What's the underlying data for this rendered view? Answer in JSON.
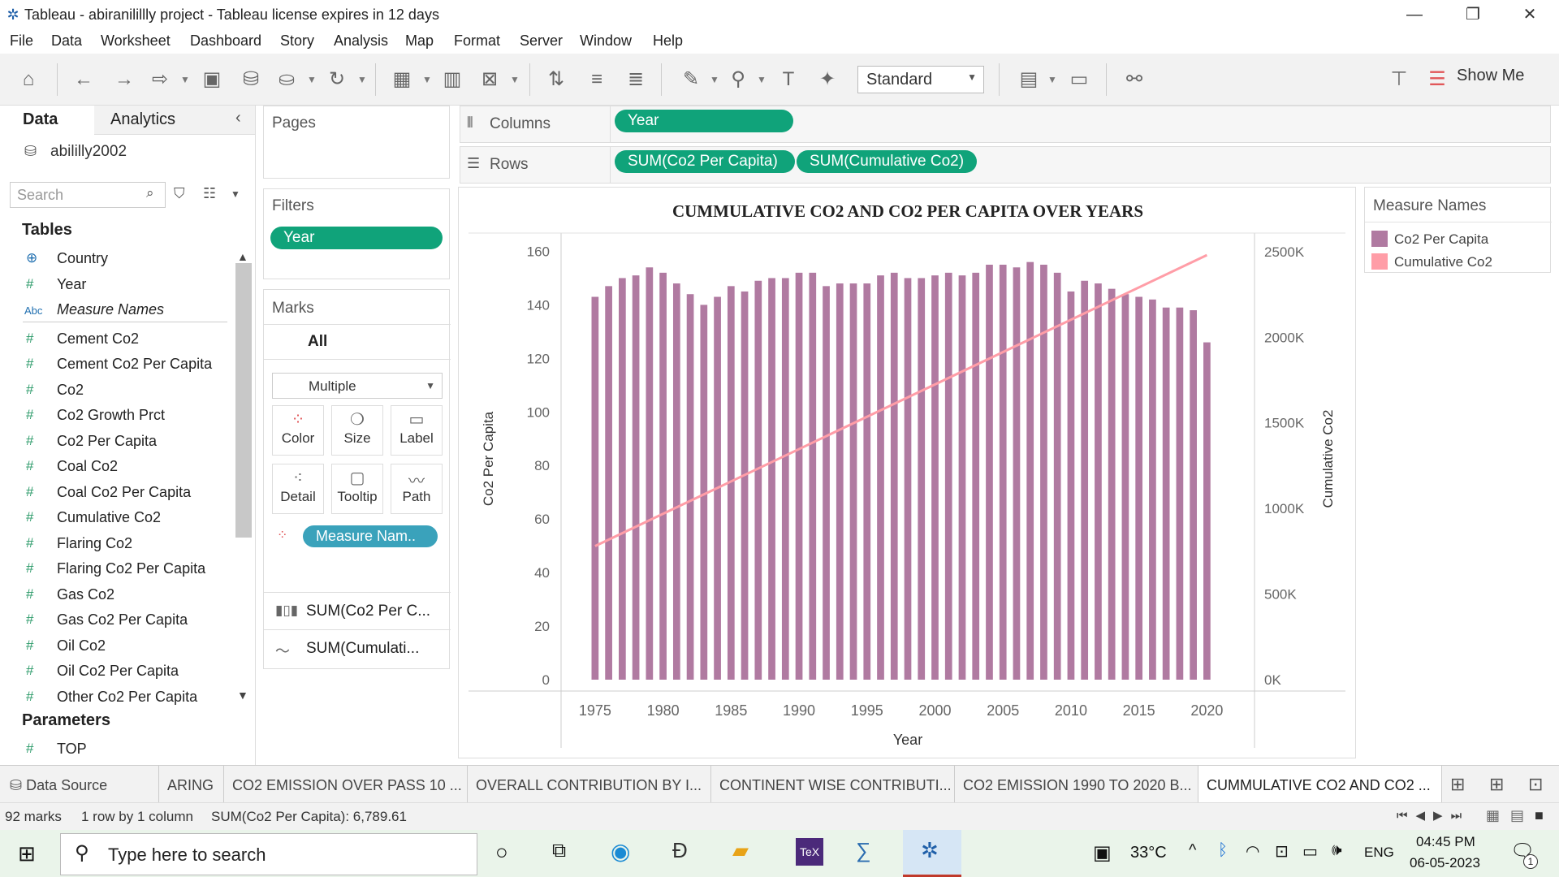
{
  "window": {
    "title": "Tableau - abiranilillly project - Tableau license expires in 12 days",
    "minimize": "—",
    "maximize": "❐",
    "close": "✕"
  },
  "menu": [
    "File",
    "Data",
    "Worksheet",
    "Dashboard",
    "Story",
    "Analysis",
    "Map",
    "Format",
    "Server",
    "Window",
    "Help"
  ],
  "toolbar": {
    "fit_select": "Standard",
    "show_me": "Show Me"
  },
  "data_pane": {
    "tab_data": "Data",
    "tab_analytics": "Analytics",
    "datasource": "abililly2002",
    "search_placeholder": "Search",
    "tables_heading": "Tables",
    "fields": [
      {
        "icon": "⊕",
        "name": "Country"
      },
      {
        "icon": "#",
        "name": "Year"
      },
      {
        "icon": "Abc",
        "name": "Measure Names"
      },
      {
        "icon": "#",
        "name": "Cement Co2"
      },
      {
        "icon": "#",
        "name": "Cement Co2 Per Capita"
      },
      {
        "icon": "#",
        "name": "Co2"
      },
      {
        "icon": "#",
        "name": "Co2 Growth Prct"
      },
      {
        "icon": "#",
        "name": "Co2 Per Capita"
      },
      {
        "icon": "#",
        "name": "Coal Co2"
      },
      {
        "icon": "#",
        "name": "Coal Co2 Per Capita"
      },
      {
        "icon": "#",
        "name": "Cumulative Co2"
      },
      {
        "icon": "#",
        "name": "Flaring Co2"
      },
      {
        "icon": "#",
        "name": "Flaring Co2 Per Capita"
      },
      {
        "icon": "#",
        "name": "Gas Co2"
      },
      {
        "icon": "#",
        "name": "Gas Co2 Per Capita"
      },
      {
        "icon": "#",
        "name": "Oil Co2"
      },
      {
        "icon": "#",
        "name": "Oil Co2 Per Capita"
      },
      {
        "icon": "#",
        "name": "Other Co2 Per Capita"
      }
    ],
    "parameters_heading": "Parameters",
    "parameters": [
      {
        "icon": "#",
        "name": "TOP"
      }
    ]
  },
  "shelves": {
    "pages_title": "Pages",
    "filters_title": "Filters",
    "filter_pill": "Year",
    "marks_title": "Marks",
    "marks_all": "All",
    "mark_type": "Multiple",
    "mark_buttons": [
      "Color",
      "Size",
      "Label",
      "Detail",
      "Tooltip",
      "Path"
    ],
    "color_pill": "Measure Nam..",
    "mark_cards": [
      "SUM(Co2 Per C...",
      "SUM(Cumulati..."
    ],
    "columns_title": "Columns",
    "columns_pill": "Year",
    "rows_title": "Rows",
    "rows_pills": [
      "SUM(Co2 Per Capita)",
      "SUM(Cumulative Co2)"
    ]
  },
  "legend": {
    "title": "Measure Names",
    "items": [
      {
        "name": "Co2 Per Capita",
        "color": "#b07aa1"
      },
      {
        "name": "Cumulative Co2",
        "color": "#ff9da7"
      }
    ]
  },
  "chart_data": {
    "type": "bar",
    "title": "CUMMULATIVE CO2 AND CO2 PER CAPITA OVER YEARS",
    "xlabel": "Year",
    "ylabel": "Co2 Per Capita",
    "y2label": "Cumulative Co2",
    "ylim": [
      0,
      165
    ],
    "y2lim": [
      0,
      2580
    ],
    "y_ticks": [
      "0",
      "20",
      "40",
      "60",
      "80",
      "100",
      "120",
      "140",
      "160"
    ],
    "y_tick_values": [
      0,
      20,
      40,
      60,
      80,
      100,
      120,
      140,
      160
    ],
    "y2_ticks": [
      "0K",
      "500K",
      "1000K",
      "1500K",
      "2000K",
      "2500K"
    ],
    "y2_tick_values": [
      0,
      500,
      1000,
      1500,
      2000,
      2500
    ],
    "x_ticks": [
      "1975",
      "1980",
      "1985",
      "1990",
      "1995",
      "2000",
      "2005",
      "2010",
      "2015",
      "2020"
    ],
    "x_tick_values": [
      1975,
      1980,
      1985,
      1990,
      1995,
      2000,
      2005,
      2010,
      2015,
      2020
    ],
    "grid": true,
    "legend": "top-right",
    "series": [
      {
        "name": "Co2 Per Capita",
        "type": "bar",
        "color": "#b07aa1",
        "x": [
          1975,
          1976,
          1977,
          1978,
          1979,
          1980,
          1981,
          1982,
          1983,
          1984,
          1985,
          1986,
          1987,
          1988,
          1989,
          1990,
          1991,
          1992,
          1993,
          1994,
          1995,
          1996,
          1997,
          1998,
          1999,
          2000,
          2001,
          2002,
          2003,
          2004,
          2005,
          2006,
          2007,
          2008,
          2009,
          2010,
          2011,
          2012,
          2013,
          2014,
          2015,
          2016,
          2017,
          2018,
          2019,
          2020
        ],
        "values": [
          143,
          147,
          150,
          151,
          154,
          152,
          148,
          144,
          140,
          143,
          147,
          145,
          149,
          150,
          150,
          152,
          152,
          147,
          148,
          148,
          148,
          151,
          152,
          150,
          150,
          151,
          152,
          151,
          152,
          155,
          155,
          154,
          156,
          155,
          152,
          145,
          149,
          148,
          146,
          144,
          143,
          142,
          139,
          139,
          138,
          126
        ]
      },
      {
        "name": "Cumulative Co2",
        "type": "line",
        "color": "#ff9da7",
        "x": [
          1975,
          2020
        ],
        "values": [
          780,
          2480
        ]
      }
    ]
  },
  "bottom_tabs": [
    "Data Source",
    "ARING",
    "CO2 EMISSION OVER PASS 10 ...",
    "OVERALL CONTRIBUTION BY I...",
    "CONTINENT WISE CONTRIBUTI...",
    "CO2 EMISSION 1990 TO 2020 B...",
    "CUMMULATIVE CO2 AND CO2 ..."
  ],
  "status": {
    "marks": "92 marks",
    "rows_cols": "1 row by 1 column",
    "sum": "SUM(Co2 Per Capita): 6,789.61"
  },
  "taskbar": {
    "search_placeholder": "Type here to search",
    "temperature": "33°C",
    "language": "ENG",
    "time": "04:45 PM",
    "date": "06-05-2023",
    "notifications": "1"
  }
}
